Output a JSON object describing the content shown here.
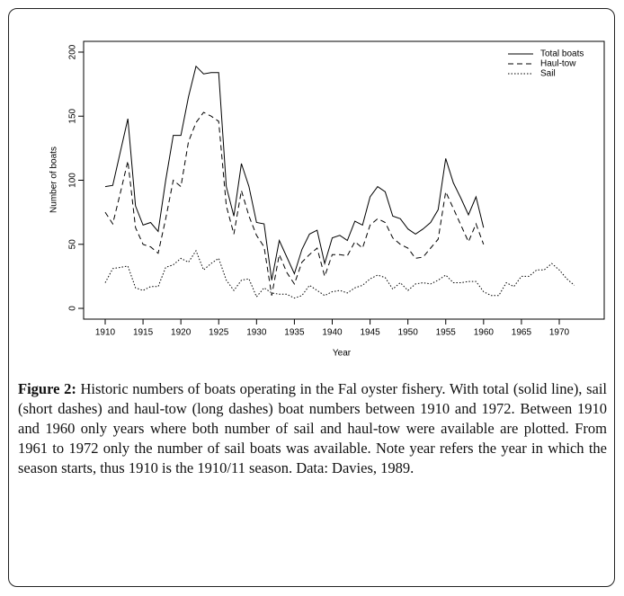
{
  "chart_data": {
    "type": "line",
    "xlabel": "Year",
    "ylabel": "Number of boats",
    "x": [
      1910,
      1911,
      1912,
      1913,
      1914,
      1915,
      1916,
      1917,
      1918,
      1919,
      1920,
      1921,
      1922,
      1923,
      1924,
      1925,
      1926,
      1927,
      1928,
      1929,
      1930,
      1931,
      1932,
      1933,
      1934,
      1935,
      1936,
      1937,
      1938,
      1939,
      1940,
      1941,
      1942,
      1943,
      1944,
      1945,
      1946,
      1947,
      1948,
      1949,
      1950,
      1951,
      1952,
      1953,
      1954,
      1955,
      1956,
      1957,
      1958,
      1959,
      1960,
      1961,
      1962,
      1963,
      1964,
      1965,
      1966,
      1967,
      1968,
      1969,
      1970,
      1971,
      1972
    ],
    "series": [
      {
        "name": "Total boats",
        "color": "#000000",
        "dash": "solid",
        "values": [
          95,
          96,
          122,
          148,
          80,
          65,
          67,
          60,
          100,
          135,
          135,
          165,
          189,
          183,
          184,
          184,
          95,
          72,
          113,
          95,
          67,
          66,
          22,
          53,
          40,
          27,
          46,
          58,
          61,
          35,
          55,
          57,
          53,
          68,
          65,
          87,
          95,
          91,
          72,
          70,
          62,
          58,
          62,
          67,
          77,
          117,
          98,
          86,
          73,
          87,
          63,
          null,
          null,
          null,
          null,
          null,
          null,
          null,
          null,
          null,
          null,
          null,
          null
        ]
      },
      {
        "name": "Haul-tow",
        "color": "#000000",
        "dash": "dashed",
        "values": [
          75,
          66,
          90,
          115,
          63,
          50,
          48,
          43,
          70,
          100,
          95,
          130,
          145,
          153,
          150,
          146,
          80,
          58,
          92,
          72,
          57,
          48,
          10,
          42,
          28,
          19,
          36,
          42,
          47,
          25,
          42,
          42,
          41,
          52,
          47,
          65,
          70,
          67,
          55,
          50,
          47,
          39,
          40,
          47,
          54,
          91,
          78,
          65,
          52,
          66,
          50,
          null,
          null,
          null,
          null,
          null,
          null,
          null,
          null,
          null,
          null,
          null,
          null
        ]
      },
      {
        "name": "Sail",
        "color": "#000000",
        "dash": "dotted",
        "values": [
          20,
          31,
          32,
          33,
          16,
          14,
          17,
          17,
          32,
          34,
          39,
          36,
          45,
          30,
          35,
          39,
          22,
          14,
          22,
          23,
          9,
          16,
          12,
          11,
          11,
          8,
          10,
          18,
          14,
          10,
          13,
          14,
          12,
          16,
          18,
          23,
          26,
          24,
          15,
          20,
          14,
          19,
          20,
          19,
          22,
          26,
          20,
          20,
          21,
          21,
          13,
          10,
          10,
          20,
          17,
          25,
          25,
          30,
          30,
          35,
          30,
          23,
          18
        ]
      }
    ],
    "xlim": [
      1907.15,
      1975.94
    ],
    "xticks": [
      1910,
      1915,
      1920,
      1925,
      1930,
      1935,
      1940,
      1945,
      1950,
      1955,
      1960,
      1965,
      1970
    ],
    "ylim": [
      -8.4,
      208.4
    ],
    "yticks": [
      0,
      50,
      100,
      150,
      200
    ],
    "legend": "top-right",
    "grid": false
  },
  "caption": {
    "label": "Figure 2:",
    "text": "Historic numbers of boats operating in the Fal oyster fishery. With total (solid line), sail (short dashes) and haul-tow (long dashes) boat numbers between 1910 and 1972. Between 1910 and 1960 only years where both number of sail and haul-tow were available are plotted. From 1961 to 1972 only the number of sail boats was available. Note year refers the year in which the season starts, thus 1910 is the 1910/11 season. Data: Davies, 1989."
  }
}
